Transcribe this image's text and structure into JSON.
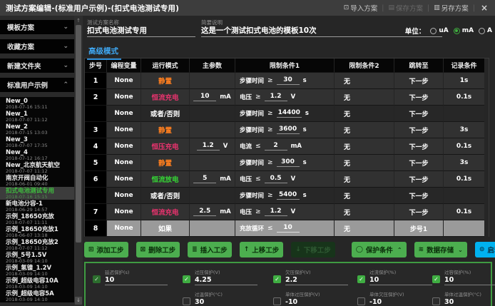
{
  "titlebar": {
    "title": "测试方案编辑-(标准用户示例)-(扣式电池测试专用)",
    "actions": [
      {
        "label": "导入方案",
        "glyph": "⊡",
        "icon": "import-icon",
        "disabled": false
      },
      {
        "label": "保存方案",
        "glyph": "▤",
        "icon": "save-icon",
        "disabled": true
      },
      {
        "label": "另存方案",
        "glyph": "▥",
        "icon": "save-as-icon",
        "disabled": false
      }
    ],
    "close_glyph": "×"
  },
  "icons": {
    "scroll_up": "↑",
    "scroll_down": "↓"
  },
  "sidebar": {
    "sections": [
      {
        "label": "模板方案",
        "chevron": "⌄"
      },
      {
        "label": "收藏方案",
        "chevron": "⌄"
      },
      {
        "label": "新建文件夹",
        "chevron": "⌄"
      },
      {
        "label": "标准用户示例",
        "chevron": "⌃"
      }
    ],
    "files": [
      {
        "name": "New_0",
        "time": "2018-07-16 15:11",
        "selected": false
      },
      {
        "name": "New_1",
        "time": "2018-07-07 11:12",
        "selected": false
      },
      {
        "name": "New_2",
        "time": "2018-07-15 13:03",
        "selected": false
      },
      {
        "name": "New_3",
        "time": "2018-07-07 17:35",
        "selected": false
      },
      {
        "name": "New_4",
        "time": "2018-07-12 16:17",
        "selected": false
      },
      {
        "name": "New_北京航天航空",
        "time": "2018-07-07 11:12",
        "selected": false
      },
      {
        "name": "南京开阀自动化",
        "time": "2018-06-01 09:40",
        "selected": false
      },
      {
        "name": "扣式电池测试专用",
        "time": "2018-07-16 15:15",
        "selected": true
      },
      {
        "name": "新电池分容-1",
        "time": "2018-06-29 14:57",
        "selected": false
      },
      {
        "name": "示例_18650充放",
        "time": "2018-07-07 11:11",
        "selected": false
      },
      {
        "name": "示例_18650充放1",
        "time": "2018-06-07 13:18",
        "selected": false
      },
      {
        "name": "示例_18650充放2",
        "time": "2018-07-07 11:12",
        "selected": false
      },
      {
        "name": "示例_5号1.5V",
        "time": "2018-03-09 14:10",
        "selected": false
      },
      {
        "name": "示例_氢镍_1.2V",
        "time": "2018-03-09 14:10",
        "selected": false
      },
      {
        "name": "示例_超级电容10A",
        "time": "2018-03-09 14:10",
        "selected": false
      },
      {
        "name": "示例_超级电容5A",
        "time": "2018-03-09 14:10",
        "selected": false
      }
    ]
  },
  "form": {
    "name_label": "测试方案名称",
    "name_value": "扣式电池测试专用",
    "desc_label": "简要说明",
    "desc_value": "这是一个测试扣式电池的模板10次",
    "unit_label": "单位：",
    "units": [
      {
        "label": "uA",
        "selected": false
      },
      {
        "label": "mA",
        "selected": true
      },
      {
        "label": "A",
        "selected": false
      }
    ]
  },
  "tab": {
    "label": "高级模式"
  },
  "table": {
    "headers": [
      "步号",
      "编程变量",
      "运行模式",
      "主参数",
      "限制条件1",
      "限制条件2",
      "跳转至",
      "记录条件"
    ],
    "rows": [
      {
        "step": "1",
        "variable": "None",
        "mode": "静置",
        "mode_color": "#ff7f1f",
        "param_value": "",
        "param_unit": "",
        "limit1_label": "步骤时间",
        "limit1_op": "≥",
        "limit1_value": "30",
        "limit1_unit": "s",
        "limit2": "无",
        "jump": "下一步",
        "record": "1s",
        "sub": false,
        "selected": false
      },
      {
        "step": "2",
        "variable": "None",
        "mode": "恒流充电",
        "mode_color": "#e8336e",
        "param_value": "10",
        "param_unit": "mA",
        "limit1_label": "电压",
        "limit1_op": "≥",
        "limit1_value": "1.2",
        "limit1_unit": "V",
        "limit2": "无",
        "jump": "下一步",
        "record": "0.1s",
        "sub": false,
        "selected": false
      },
      {
        "step": "",
        "variable": "None",
        "mode": "或者/否则",
        "mode_color": "#ffffff",
        "param_value": "",
        "param_unit": "",
        "limit1_label": "步骤时间",
        "limit1_op": "≥",
        "limit1_value": "14400",
        "limit1_unit": "s",
        "limit2": "无",
        "jump": "下一步",
        "record": "",
        "sub": true,
        "selected": false
      },
      {
        "step": "3",
        "variable": "None",
        "mode": "静置",
        "mode_color": "#ff7f1f",
        "param_value": "",
        "param_unit": "",
        "limit1_label": "步骤时间",
        "limit1_op": "≥",
        "limit1_value": "3600",
        "limit1_unit": "s",
        "limit2": "无",
        "jump": "下一步",
        "record": "3s",
        "sub": false,
        "selected": false
      },
      {
        "step": "4",
        "variable": "None",
        "mode": "恒压充电",
        "mode_color": "#e8336e",
        "param_value": "1.2",
        "param_unit": "V",
        "limit1_label": "电流",
        "limit1_op": "≤",
        "limit1_value": "2",
        "limit1_unit": "mA",
        "limit2": "无",
        "jump": "下一步",
        "record": "0.1s",
        "sub": false,
        "selected": false
      },
      {
        "step": "5",
        "variable": "None",
        "mode": "静置",
        "mode_color": "#ff7f1f",
        "param_value": "",
        "param_unit": "",
        "limit1_label": "步骤时间",
        "limit1_op": "≥",
        "limit1_value": "300",
        "limit1_unit": "s",
        "limit2": "无",
        "jump": "下一步",
        "record": "3s",
        "sub": false,
        "selected": false
      },
      {
        "step": "6",
        "variable": "None",
        "mode": "恒流放电",
        "mode_color": "#35d435",
        "param_value": "5",
        "param_unit": "mA",
        "limit1_label": "电压",
        "limit1_op": "≤",
        "limit1_value": "0.5",
        "limit1_unit": "V",
        "limit2": "无",
        "jump": "下一步",
        "record": "0.1s",
        "sub": false,
        "selected": false
      },
      {
        "step": "",
        "variable": "None",
        "mode": "或者/否则",
        "mode_color": "#ffffff",
        "param_value": "",
        "param_unit": "",
        "limit1_label": "步骤时间",
        "limit1_op": "≥",
        "limit1_value": "5400",
        "limit1_unit": "s",
        "limit2": "无",
        "jump": "下一步",
        "record": "",
        "sub": true,
        "selected": false
      },
      {
        "step": "7",
        "variable": "None",
        "mode": "恒流充电",
        "mode_color": "#e8336e",
        "param_value": "2.5",
        "param_unit": "mA",
        "limit1_label": "电压",
        "limit1_op": "≥",
        "limit1_value": "1.2",
        "limit1_unit": "V",
        "limit2": "无",
        "jump": "下一步",
        "record": "0.1s",
        "sub": false,
        "selected": false
      },
      {
        "step": "8",
        "variable": "None",
        "mode": "如果",
        "mode_color": "#ffffff",
        "param_value": "",
        "param_unit": "",
        "limit1_label": "充放循环",
        "limit1_op": "≤",
        "limit1_value": "10",
        "limit1_unit": "",
        "limit2": "无",
        "jump": "步号1",
        "record": "",
        "sub": false,
        "selected": true
      }
    ]
  },
  "toolbar": {
    "buttons": [
      {
        "label": "添加工步",
        "icon": "add-step-icon",
        "glyph": "⊞",
        "variant": "green",
        "chevron": ""
      },
      {
        "label": "删除工步",
        "icon": "delete-step-icon",
        "glyph": "⊠",
        "variant": "green",
        "chevron": ""
      },
      {
        "label": "插入工步",
        "icon": "insert-step-icon",
        "glyph": "≣",
        "variant": "green",
        "chevron": ""
      },
      {
        "label": "上移工步",
        "icon": "move-up-icon",
        "glyph": "↑",
        "variant": "green",
        "chevron": ""
      },
      {
        "label": "下移工步",
        "icon": "move-down-icon",
        "glyph": "↓",
        "variant": "disabled",
        "chevron": ""
      },
      {
        "label": "保护条件",
        "icon": "shield-icon",
        "glyph": "◯",
        "variant": "shield",
        "chevron": "⌃"
      },
      {
        "label": "数据存储",
        "icon": "storage-icon",
        "glyph": "≋",
        "variant": "storage",
        "chevron": "⌄"
      },
      {
        "label": "启动",
        "icon": "start-icon",
        "glyph": "⊙",
        "variant": "cyan",
        "chevron": ""
      }
    ]
  },
  "protection": {
    "rows": [
      [
        {
          "label": "延迟保护(s)",
          "value": "10",
          "checked": true,
          "dim": true
        },
        {
          "label": "过压保护(V)",
          "value": "4.25",
          "checked": true,
          "dim": false
        },
        {
          "label": "欠压保护(V)",
          "value": "2.2",
          "checked": true,
          "dim": false
        },
        {
          "label": "过流保护(%)",
          "value": "10",
          "checked": true,
          "dim": false
        },
        {
          "label": "过容保护(%)",
          "value": "10",
          "checked": true,
          "dim": false
        }
      ],
      [
        null,
        {
          "label": "过温保护(°C)",
          "value": "30",
          "checked": false,
          "dim": false
        },
        {
          "label": "单体过压保护(V)",
          "value": "-10",
          "checked": false,
          "dim": false
        },
        {
          "label": "单体欠压保护(V)",
          "value": "-10",
          "checked": false,
          "dim": false
        },
        {
          "label": "单体过温保护(°C)",
          "value": "30",
          "checked": false,
          "dim": false
        }
      ]
    ]
  },
  "colors": {
    "accent_green": "#4cae4f",
    "accent_cyan": "#00b2f0",
    "accent_blue_tab": "#3fa9f5",
    "mode_rest": "#ff7f1f",
    "mode_charge": "#e8336e",
    "mode_discharge": "#35d435",
    "selected_row_bg": "#9a9a9a"
  }
}
